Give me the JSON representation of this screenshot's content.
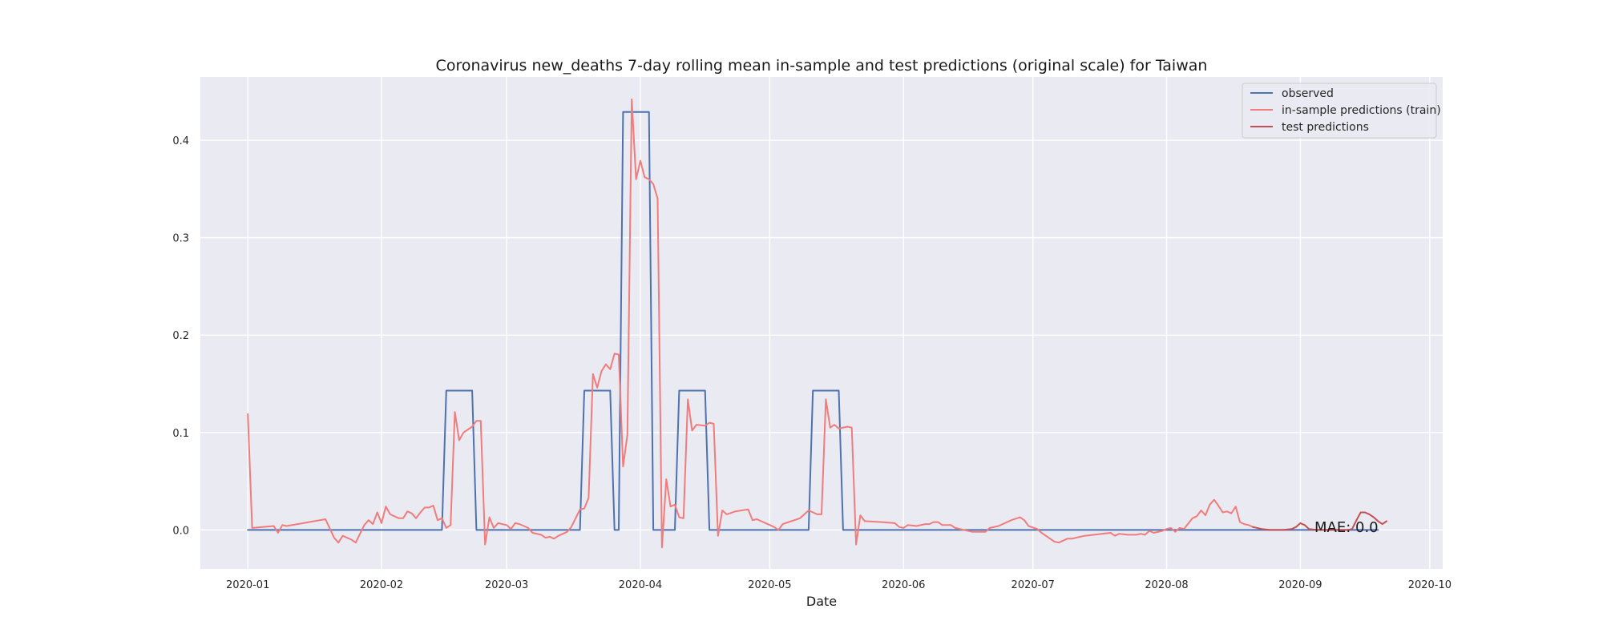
{
  "chart_data": {
    "type": "line",
    "title": "Coronavirus new_deaths 7-day rolling mean in-sample and test predictions (original scale) for Taiwan",
    "xlabel": "Date",
    "ylabel": "",
    "x_ticks": [
      "2020-01",
      "2020-02",
      "2020-03",
      "2020-04",
      "2020-05",
      "2020-06",
      "2020-07",
      "2020-08",
      "2020-09",
      "2020-10"
    ],
    "y_ticks": [
      "0.0",
      "0.1",
      "0.2",
      "0.3",
      "0.4"
    ],
    "xlim": [
      "2019-12-21",
      "2020-10-04"
    ],
    "ylim": [
      -0.04,
      0.465
    ],
    "grid": true,
    "legend_position": "top-right",
    "annotation": "MAE: 0.0",
    "series": [
      {
        "name": "observed",
        "color": "#4c72b0",
        "points": [
          [
            "2020-01-01",
            0
          ],
          [
            "2020-02-15",
            0
          ],
          [
            "2020-02-16",
            0.143
          ],
          [
            "2020-02-22",
            0.143
          ],
          [
            "2020-02-23",
            0
          ],
          [
            "2020-03-18",
            0
          ],
          [
            "2020-03-19",
            0.143
          ],
          [
            "2020-03-25",
            0.143
          ],
          [
            "2020-03-26",
            0
          ],
          [
            "2020-03-27",
            0
          ],
          [
            "2020-03-28",
            0.429
          ],
          [
            "2020-04-03",
            0.429
          ],
          [
            "2020-04-04",
            0
          ],
          [
            "2020-04-09",
            0
          ],
          [
            "2020-04-10",
            0.143
          ],
          [
            "2020-04-16",
            0.143
          ],
          [
            "2020-04-17",
            0
          ],
          [
            "2020-05-10",
            0
          ],
          [
            "2020-05-11",
            0.143
          ],
          [
            "2020-05-17",
            0.143
          ],
          [
            "2020-05-18",
            0
          ],
          [
            "2020-09-19",
            0
          ]
        ]
      },
      {
        "name": "in-sample predictions (train)",
        "color": "#f07c7c",
        "points": [
          [
            "2020-01-01",
            0.119
          ],
          [
            "2020-01-02",
            0.002
          ],
          [
            "2020-01-07",
            0.004
          ],
          [
            "2020-01-08",
            -0.003
          ],
          [
            "2020-01-09",
            0.005
          ],
          [
            "2020-01-10",
            0.004
          ],
          [
            "2020-01-19",
            0.011
          ],
          [
            "2020-01-21",
            -0.008
          ],
          [
            "2020-01-22",
            -0.013
          ],
          [
            "2020-01-23",
            -0.006
          ],
          [
            "2020-01-25",
            -0.01
          ],
          [
            "2020-01-26",
            -0.013
          ],
          [
            "2020-01-28",
            0.005
          ],
          [
            "2020-01-29",
            0.01
          ],
          [
            "2020-01-30",
            0.006
          ],
          [
            "2020-01-31",
            0.018
          ],
          [
            "2020-02-01",
            0.007
          ],
          [
            "2020-02-02",
            0.024
          ],
          [
            "2020-02-03",
            0.016
          ],
          [
            "2020-02-05",
            0.012
          ],
          [
            "2020-02-06",
            0.012
          ],
          [
            "2020-02-07",
            0.019
          ],
          [
            "2020-02-08",
            0.017
          ],
          [
            "2020-02-09",
            0.012
          ],
          [
            "2020-02-10",
            0.018
          ],
          [
            "2020-02-11",
            0.023
          ],
          [
            "2020-02-12",
            0.023
          ],
          [
            "2020-02-13",
            0.025
          ],
          [
            "2020-02-14",
            0.01
          ],
          [
            "2020-02-15",
            0.012
          ],
          [
            "2020-02-16",
            0.002
          ],
          [
            "2020-02-17",
            0.005
          ],
          [
            "2020-02-18",
            0.121
          ],
          [
            "2020-02-19",
            0.092
          ],
          [
            "2020-02-20",
            0.1
          ],
          [
            "2020-02-22",
            0.106
          ],
          [
            "2020-02-23",
            0.112
          ],
          [
            "2020-02-24",
            0.112
          ],
          [
            "2020-02-25",
            -0.015
          ],
          [
            "2020-02-26",
            0.013
          ],
          [
            "2020-02-27",
            0.002
          ],
          [
            "2020-02-28",
            0.007
          ],
          [
            "2020-03-01",
            0.005
          ],
          [
            "2020-03-02",
            0.001
          ],
          [
            "2020-03-03",
            0.007
          ],
          [
            "2020-03-04",
            0.006
          ],
          [
            "2020-03-06",
            0.002
          ],
          [
            "2020-03-07",
            -0.003
          ],
          [
            "2020-03-09",
            -0.005
          ],
          [
            "2020-03-10",
            -0.008
          ],
          [
            "2020-03-11",
            -0.007
          ],
          [
            "2020-03-12",
            -0.009
          ],
          [
            "2020-03-13",
            -0.006
          ],
          [
            "2020-03-15",
            -0.002
          ],
          [
            "2020-03-16",
            0.003
          ],
          [
            "2020-03-18",
            0.021
          ],
          [
            "2020-03-19",
            0.022
          ],
          [
            "2020-03-20",
            0.033
          ],
          [
            "2020-03-21",
            0.16
          ],
          [
            "2020-03-22",
            0.146
          ],
          [
            "2020-03-23",
            0.163
          ],
          [
            "2020-03-24",
            0.17
          ],
          [
            "2020-03-25",
            0.165
          ],
          [
            "2020-03-26",
            0.181
          ],
          [
            "2020-03-27",
            0.18
          ],
          [
            "2020-03-28",
            0.065
          ],
          [
            "2020-03-29",
            0.098
          ],
          [
            "2020-03-30",
            0.442
          ],
          [
            "2020-03-31",
            0.36
          ],
          [
            "2020-04-01",
            0.379
          ],
          [
            "2020-04-02",
            0.362
          ],
          [
            "2020-04-03",
            0.36
          ],
          [
            "2020-04-04",
            0.355
          ],
          [
            "2020-04-05",
            0.34
          ],
          [
            "2020-04-06",
            -0.018
          ],
          [
            "2020-04-07",
            0.052
          ],
          [
            "2020-04-08",
            0.024
          ],
          [
            "2020-04-09",
            0.026
          ],
          [
            "2020-04-10",
            0.013
          ],
          [
            "2020-04-11",
            0.012
          ],
          [
            "2020-04-12",
            0.134
          ],
          [
            "2020-04-13",
            0.102
          ],
          [
            "2020-04-14",
            0.108
          ],
          [
            "2020-04-16",
            0.107
          ],
          [
            "2020-04-17",
            0.11
          ],
          [
            "2020-04-18",
            0.109
          ],
          [
            "2020-04-19",
            -0.006
          ],
          [
            "2020-04-20",
            0.02
          ],
          [
            "2020-04-21",
            0.016
          ],
          [
            "2020-04-23",
            0.019
          ],
          [
            "2020-04-26",
            0.021
          ],
          [
            "2020-04-27",
            0.01
          ],
          [
            "2020-04-28",
            0.011
          ],
          [
            "2020-05-02",
            0.003
          ],
          [
            "2020-05-03",
            0
          ],
          [
            "2020-05-04",
            0.006
          ],
          [
            "2020-05-06",
            0.009
          ],
          [
            "2020-05-08",
            0.012
          ],
          [
            "2020-05-10",
            0.02
          ],
          [
            "2020-05-12",
            0.016
          ],
          [
            "2020-05-13",
            0.016
          ],
          [
            "2020-05-14",
            0.134
          ],
          [
            "2020-05-15",
            0.105
          ],
          [
            "2020-05-16",
            0.108
          ],
          [
            "2020-05-17",
            0.104
          ],
          [
            "2020-05-19",
            0.106
          ],
          [
            "2020-05-20",
            0.105
          ],
          [
            "2020-05-21",
            -0.015
          ],
          [
            "2020-05-22",
            0.015
          ],
          [
            "2020-05-23",
            0.009
          ],
          [
            "2020-05-27",
            0.008
          ],
          [
            "2020-05-30",
            0.007
          ],
          [
            "2020-05-31",
            0.003
          ],
          [
            "2020-06-01",
            0.002
          ],
          [
            "2020-06-02",
            0.005
          ],
          [
            "2020-06-04",
            0.004
          ],
          [
            "2020-06-06",
            0.006
          ],
          [
            "2020-06-07",
            0.006
          ],
          [
            "2020-06-08",
            0.008
          ],
          [
            "2020-06-09",
            0.008
          ],
          [
            "2020-06-10",
            0.005
          ],
          [
            "2020-06-12",
            0.005
          ],
          [
            "2020-06-13",
            0.002
          ],
          [
            "2020-06-15",
            0
          ],
          [
            "2020-06-17",
            -0.002
          ],
          [
            "2020-06-19",
            -0.002
          ],
          [
            "2020-06-20",
            -0.002
          ],
          [
            "2020-06-21",
            0.002
          ],
          [
            "2020-06-23",
            0.004
          ],
          [
            "2020-06-24",
            0.006
          ],
          [
            "2020-06-26",
            0.01
          ],
          [
            "2020-06-28",
            0.013
          ],
          [
            "2020-06-29",
            0.01
          ],
          [
            "2020-06-30",
            0.004
          ],
          [
            "2020-07-02",
            0.001
          ],
          [
            "2020-07-03",
            -0.003
          ],
          [
            "2020-07-05",
            -0.009
          ],
          [
            "2020-07-06",
            -0.012
          ],
          [
            "2020-07-07",
            -0.013
          ],
          [
            "2020-07-09",
            -0.009
          ],
          [
            "2020-07-10",
            -0.009
          ],
          [
            "2020-07-12",
            -0.007
          ],
          [
            "2020-07-13",
            -0.006
          ],
          [
            "2020-07-17",
            -0.004
          ],
          [
            "2020-07-19",
            -0.003
          ],
          [
            "2020-07-20",
            -0.006
          ],
          [
            "2020-07-21",
            -0.004
          ],
          [
            "2020-07-23",
            -0.005
          ],
          [
            "2020-07-25",
            -0.005
          ],
          [
            "2020-07-26",
            -0.004
          ],
          [
            "2020-07-27",
            -0.005
          ],
          [
            "2020-07-28",
            -0.001
          ],
          [
            "2020-07-29",
            -0.003
          ],
          [
            "2020-07-31",
            -0.001
          ],
          [
            "2020-08-01",
            0.001
          ],
          [
            "2020-08-02",
            0.002
          ],
          [
            "2020-08-03",
            -0.002
          ],
          [
            "2020-08-04",
            0.002
          ],
          [
            "2020-08-05",
            0.001
          ],
          [
            "2020-08-07",
            0.012
          ],
          [
            "2020-08-08",
            0.014
          ],
          [
            "2020-08-09",
            0.02
          ],
          [
            "2020-08-10",
            0.015
          ],
          [
            "2020-08-11",
            0.026
          ],
          [
            "2020-08-12",
            0.031
          ],
          [
            "2020-08-13",
            0.025
          ],
          [
            "2020-08-14",
            0.018
          ],
          [
            "2020-08-15",
            0.019
          ],
          [
            "2020-08-16",
            0.017
          ],
          [
            "2020-08-17",
            0.024
          ],
          [
            "2020-08-18",
            0.008
          ],
          [
            "2020-08-19",
            0.006
          ],
          [
            "2020-08-20",
            0.005
          ],
          [
            "2020-08-21",
            0.003
          ]
        ]
      },
      {
        "name": "test predictions",
        "color": "#c44e52",
        "points": [
          [
            "2020-08-21",
            0.003
          ],
          [
            "2020-08-23",
            0.001
          ],
          [
            "2020-08-25",
            0
          ],
          [
            "2020-08-28",
            0
          ],
          [
            "2020-08-30",
            0.001
          ],
          [
            "2020-08-31",
            0.003
          ],
          [
            "2020-09-01",
            0.007
          ],
          [
            "2020-09-02",
            0.005
          ],
          [
            "2020-09-03",
            0.001
          ],
          [
            "2020-09-05",
            0
          ],
          [
            "2020-09-08",
            0
          ],
          [
            "2020-09-10",
            0
          ],
          [
            "2020-09-12",
            0
          ],
          [
            "2020-09-13",
            0.001
          ],
          [
            "2020-09-14",
            0.01
          ],
          [
            "2020-09-15",
            0.018
          ],
          [
            "2020-09-16",
            0.018
          ],
          [
            "2020-09-17",
            0.016
          ],
          [
            "2020-09-18",
            0.013
          ],
          [
            "2020-09-19",
            0.009
          ],
          [
            "2020-09-20",
            0.006
          ],
          [
            "2020-09-21",
            0.009
          ]
        ]
      }
    ]
  }
}
